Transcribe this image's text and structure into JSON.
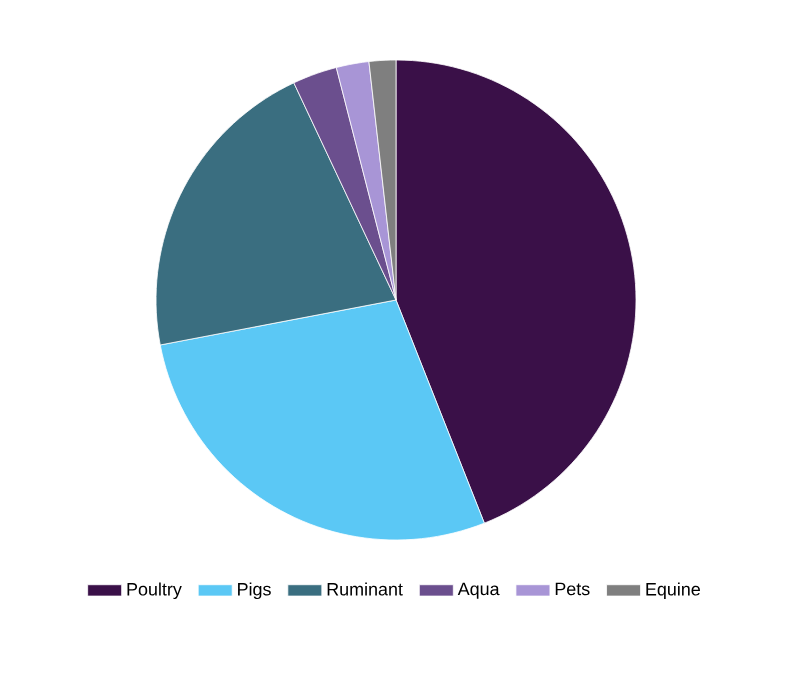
{
  "chart_data": {
    "type": "pie",
    "categories": [
      "Poultry",
      "Pigs",
      "Ruminant",
      "Aqua",
      "Pets",
      "Equine"
    ],
    "values": [
      44,
      28,
      21,
      3,
      2.2,
      1.8
    ],
    "colors": [
      "#3a1048",
      "#5bc8f5",
      "#3a6e80",
      "#6b4f8e",
      "#a895d6",
      "#7f7f7f"
    ],
    "legend": "bottom"
  }
}
